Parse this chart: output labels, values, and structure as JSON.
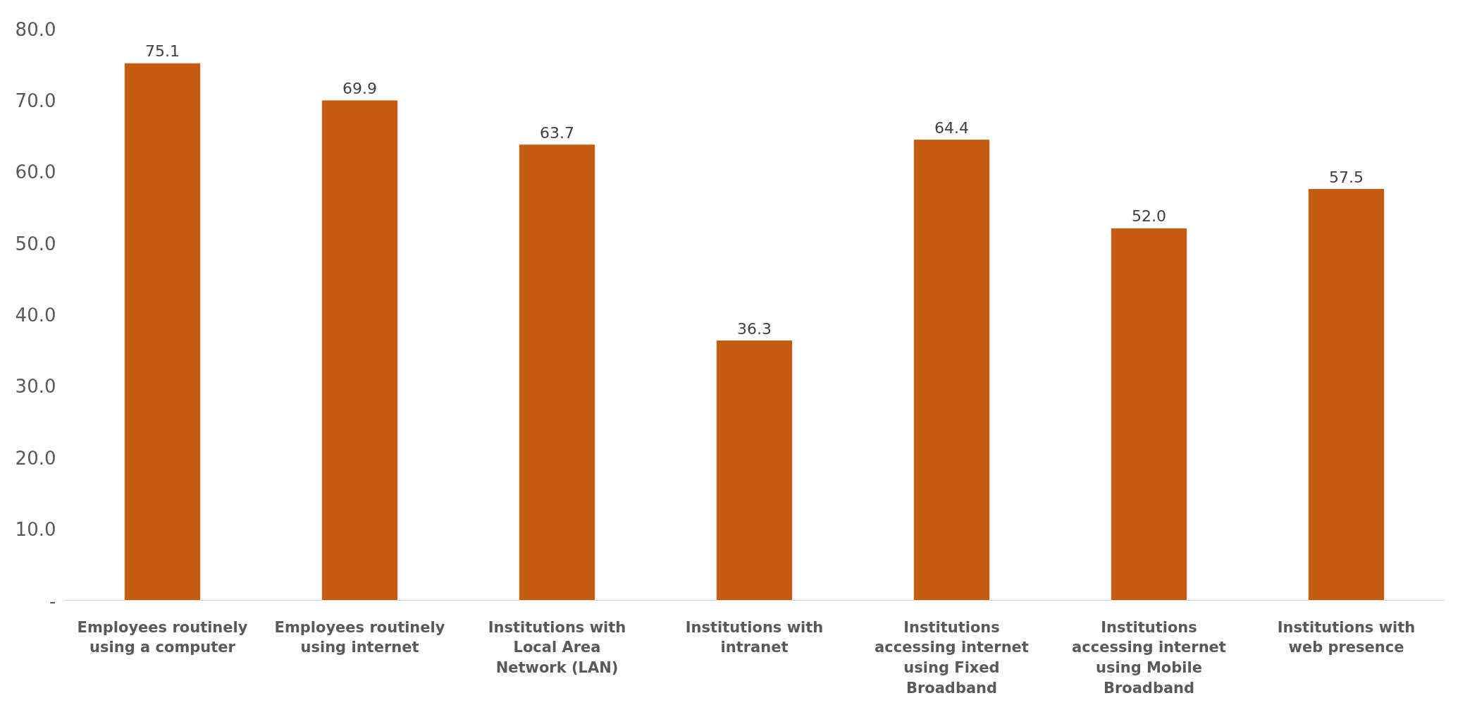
{
  "chart_data": {
    "type": "bar",
    "categories": [
      "Employees routinely\nusing a computer",
      "Employees routinely\nusing internet",
      "Institutions with\nLocal Area\nNetwork (LAN)",
      "Institutions with\nintranet",
      "Institutions\naccessing internet\nusing Fixed\nBroadband",
      "Institutions\naccessing internet\nusing Mobile\nBroadband",
      "Institutions with\nweb presence"
    ],
    "values": [
      75.1,
      69.9,
      63.7,
      36.3,
      64.4,
      52.0,
      57.5
    ],
    "color": "#c55a11",
    "ylim": [
      0,
      80
    ],
    "yticks": [
      {
        "value": 0,
        "label": "-"
      },
      {
        "value": 10,
        "label": "10.0"
      },
      {
        "value": 20,
        "label": "20.0"
      },
      {
        "value": 30,
        "label": "30.0"
      },
      {
        "value": 40,
        "label": "40.0"
      },
      {
        "value": 50,
        "label": "50.0"
      },
      {
        "value": 60,
        "label": "60.0"
      },
      {
        "value": 70,
        "label": "70.0"
      },
      {
        "value": 80,
        "label": "80.0"
      }
    ],
    "value_labels": [
      "75.1",
      "69.9",
      "63.7",
      "36.3",
      "64.4",
      "52.0",
      "57.5"
    ],
    "grid": false
  }
}
